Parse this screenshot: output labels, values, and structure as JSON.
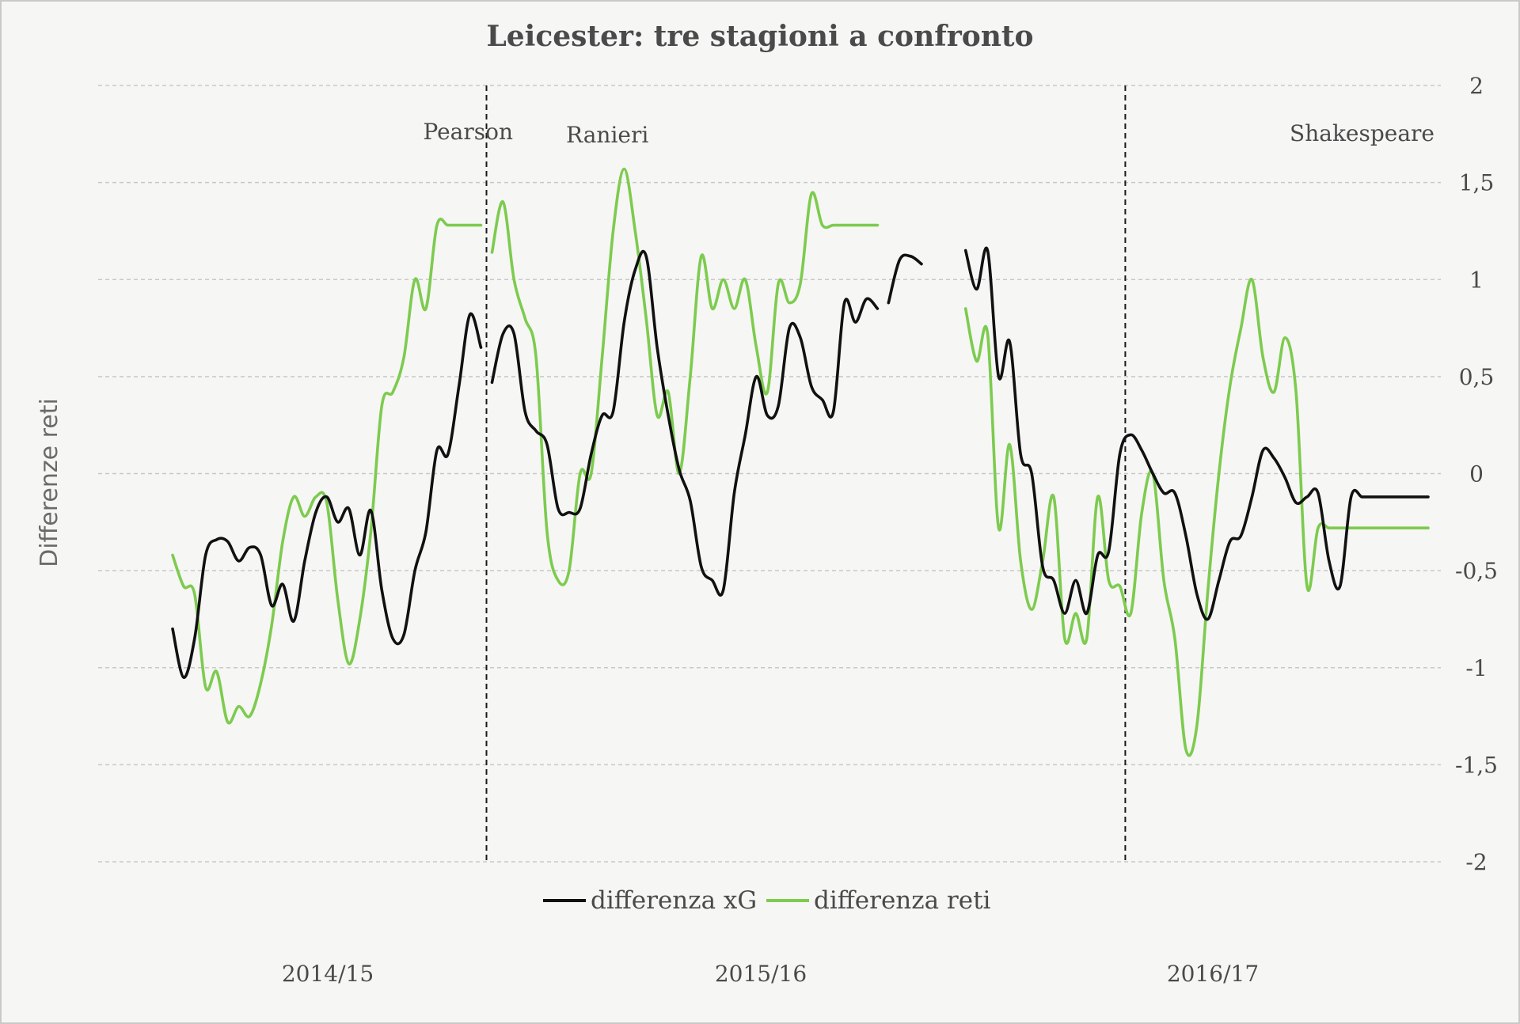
{
  "chart_data": {
    "type": "line",
    "title": "Leicester: tre stagioni a confronto",
    "ylabel": "Differenze reti",
    "xlabel": "",
    "ylim": [
      -2,
      2
    ],
    "yticks": [
      2,
      1.5,
      1,
      0.5,
      0,
      -0.5,
      -1,
      -1.5,
      -2
    ],
    "ytick_labels": [
      "2",
      "1,5",
      "1",
      "0,5",
      "0",
      "-0,5",
      "-1",
      "-1,5",
      "-2"
    ],
    "grid": true,
    "legend_position": "bottom-center",
    "season_labels": [
      "2014/15",
      "2015/16",
      "2016/17"
    ],
    "coach_labels": [
      {
        "name": "Pearson",
        "season_index": 0
      },
      {
        "name": "Ranieri",
        "season_index": 1
      },
      {
        "name": "Shakespeare",
        "season_index": 2
      }
    ],
    "x_unit": "match index (0-114)",
    "coach_changes": [
      28.5,
      86.5
    ],
    "series": [
      {
        "name": "differenza xG",
        "color": "#111111",
        "segments": [
          {
            "x": [
              0,
              1,
              2,
              3,
              4,
              5,
              6,
              7,
              8,
              9,
              10,
              11,
              12,
              13,
              14,
              15,
              16,
              17,
              18,
              19,
              20,
              21,
              22,
              23,
              24,
              25,
              26,
              27,
              28
            ],
            "y": [
              -0.8,
              -1.05,
              -0.85,
              -0.42,
              -0.34,
              -0.35,
              -0.45,
              -0.38,
              -0.42,
              -0.68,
              -0.57,
              -0.76,
              -0.45,
              -0.2,
              -0.12,
              -0.25,
              -0.18,
              -0.42,
              -0.19,
              -0.6,
              -0.85,
              -0.83,
              -0.5,
              -0.3,
              0.12,
              0.1,
              0.45,
              0.82,
              0.65
            ]
          },
          {
            "x": [
              29,
              30,
              31,
              32,
              33,
              34,
              35,
              36,
              37,
              38,
              39,
              40,
              41,
              42,
              43,
              44,
              45,
              46,
              47,
              48,
              49,
              50,
              51,
              52,
              53,
              54,
              55,
              56,
              57,
              58,
              59,
              60,
              61,
              62,
              63,
              64
            ],
            "y": [
              0.47,
              0.72,
              0.72,
              0.32,
              0.22,
              0.15,
              -0.18,
              -0.2,
              -0.18,
              0.1,
              0.3,
              0.32,
              0.78,
              1.05,
              1.12,
              0.65,
              0.3,
              0.02,
              -0.14,
              -0.48,
              -0.55,
              -0.6,
              -0.1,
              0.2,
              0.5,
              0.3,
              0.35,
              0.75,
              0.7,
              0.45,
              0.38,
              0.32,
              0.88,
              0.78,
              0.9,
              0.85
            ]
          },
          {
            "x": [
              65,
              66,
              67,
              68
            ],
            "y": [
              0.88,
              1.1,
              1.12,
              1.08
            ]
          },
          {
            "x": [
              72,
              73,
              74,
              75,
              76,
              77,
              78,
              79,
              80,
              81,
              82,
              83,
              84,
              85,
              86,
              87,
              88,
              89,
              90,
              91,
              92,
              93,
              94,
              95,
              96,
              97,
              98,
              99,
              100,
              101,
              102,
              103,
              104,
              105,
              106,
              107,
              108,
              109,
              110,
              111,
              112,
              113,
              114
            ],
            "y": [
              1.15,
              0.95,
              1.15,
              0.5,
              0.68,
              0.1,
              0.0,
              -0.48,
              -0.55,
              -0.72,
              -0.55,
              -0.72,
              -0.42,
              -0.4,
              0.1,
              0.2,
              0.12,
              0.0,
              -0.1,
              -0.1,
              -0.32,
              -0.62,
              -0.75,
              -0.55,
              -0.35,
              -0.32,
              -0.12,
              0.12,
              0.08,
              -0.02,
              -0.15,
              -0.12,
              -0.1,
              -0.45,
              -0.58,
              -0.12,
              -0.12,
              -0.12,
              -0.12,
              -0.12,
              -0.12,
              -0.12,
              -0.12
            ]
          }
        ]
      },
      {
        "name": "differenza reti",
        "color": "#7dcb4f",
        "segments": [
          {
            "x": [
              0,
              1,
              2,
              3,
              4,
              5,
              6,
              7,
              8,
              9,
              10,
              11,
              12,
              13,
              14,
              15,
              16,
              17,
              18,
              19,
              20,
              21,
              22,
              23,
              24,
              25,
              26,
              27,
              28
            ],
            "y": [
              -0.42,
              -0.58,
              -0.62,
              -1.1,
              -1.02,
              -1.28,
              -1.2,
              -1.25,
              -1.08,
              -0.78,
              -0.35,
              -0.12,
              -0.22,
              -0.12,
              -0.15,
              -0.65,
              -0.98,
              -0.75,
              -0.3,
              0.35,
              0.42,
              0.6,
              1.0,
              0.85,
              1.28,
              1.28,
              1.28,
              1.28,
              1.28
            ]
          },
          {
            "x": [
              29,
              30,
              31,
              32,
              33,
              34,
              35,
              36,
              37,
              38,
              39,
              40,
              41,
              42,
              43,
              44,
              45,
              46,
              47,
              48,
              49,
              50,
              51,
              52,
              53,
              54,
              55,
              56,
              57,
              58,
              59,
              60,
              61,
              62,
              63,
              64
            ],
            "y": [
              1.14,
              1.4,
              1.0,
              0.8,
              0.6,
              -0.3,
              -0.55,
              -0.5,
              0.0,
              0.0,
              0.6,
              1.25,
              1.57,
              1.25,
              0.8,
              0.3,
              0.42,
              0.0,
              0.5,
              1.12,
              0.85,
              1.0,
              0.85,
              1.0,
              0.65,
              0.42,
              0.98,
              0.88,
              0.98,
              1.44,
              1.28,
              1.28,
              1.28,
              1.28,
              1.28,
              1.28
            ]
          },
          {
            "x": [
              72,
              73,
              74,
              75,
              76,
              77,
              78,
              79,
              80,
              81,
              82,
              83,
              84,
              85,
              86,
              87,
              88,
              89,
              90,
              91,
              92,
              93,
              94,
              95,
              96,
              97,
              98,
              99,
              100,
              101,
              102,
              103,
              104,
              105,
              106,
              107,
              108,
              109,
              110,
              111,
              112,
              113,
              114
            ],
            "y": [
              0.85,
              0.58,
              0.72,
              -0.28,
              0.15,
              -0.45,
              -0.7,
              -0.45,
              -0.12,
              -0.85,
              -0.72,
              -0.85,
              -0.12,
              -0.55,
              -0.58,
              -0.72,
              -0.2,
              0.0,
              -0.55,
              -0.85,
              -1.42,
              -1.3,
              -0.6,
              0.0,
              0.45,
              0.75,
              1.0,
              0.6,
              0.42,
              0.7,
              0.42,
              -0.58,
              -0.28,
              -0.28,
              -0.28,
              -0.28,
              -0.28,
              -0.28,
              -0.28,
              -0.28,
              -0.28,
              -0.28,
              -0.28
            ]
          }
        ]
      }
    ]
  }
}
